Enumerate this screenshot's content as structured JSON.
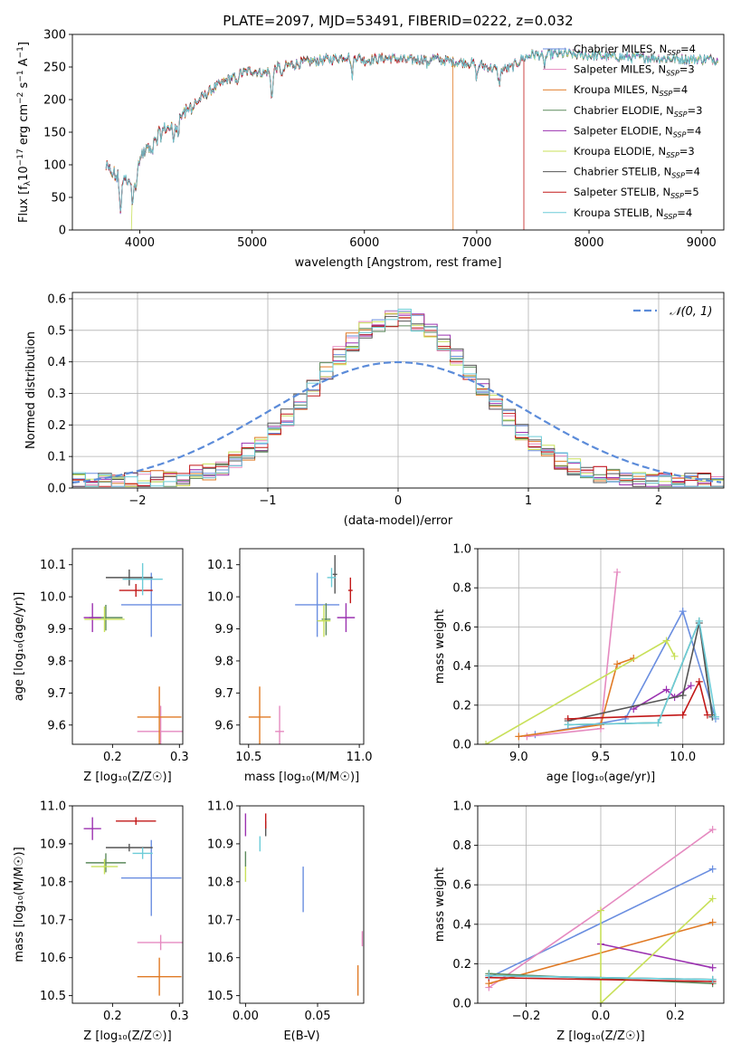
{
  "title": "PLATE=2097, MJD=53491, FIBERID=0222, z=0.032",
  "colors": {
    "Chabrier MILES": "#6a8ee0",
    "Salpeter MILES": "#e58ac0",
    "Kroupa MILES": "#e07a25",
    "Chabrier ELODIE": "#5c8a5c",
    "Salpeter ELODIE": "#9b32b0",
    "Kroupa ELODIE": "#c8e05a",
    "Chabrier STELIB": "#555555",
    "Salpeter STELIB": "#c21818",
    "Kroupa STELIB": "#6cccd8",
    "gaussian": "#5b8bd9"
  },
  "chart_data": [
    {
      "id": "spectrum",
      "type": "line",
      "xlabel": "wavelength [Angstrom, rest frame]",
      "ylabel": "Flux [f_λ 10^-17 erg cm^-2 s^-1 A^-1]",
      "xlim": [
        3400,
        9200
      ],
      "ylim": [
        0,
        300
      ],
      "xticks": [
        4000,
        5000,
        6000,
        7000,
        8000,
        9000
      ],
      "yticks": [
        0,
        50,
        100,
        150,
        200,
        250,
        300
      ],
      "legend_position": "upper-right",
      "legend": [
        {
          "name": "Chabrier MILES, N_SSP=4",
          "base": "Chabrier MILES, N",
          "sub": "SSP",
          "tail": "=4"
        },
        {
          "name": "Salpeter MILES, N_SSP=3",
          "base": "Salpeter MILES, N",
          "sub": "SSP",
          "tail": "=3"
        },
        {
          "name": "Kroupa MILES, N_SSP=4",
          "base": "Kroupa MILES, N",
          "sub": "SSP",
          "tail": "=4"
        },
        {
          "name": "Chabrier ELODIE, N_SSP=3",
          "base": "Chabrier ELODIE, N",
          "sub": "SSP",
          "tail": "=3"
        },
        {
          "name": "Salpeter ELODIE, N_SSP=4",
          "base": "Salpeter ELODIE, N",
          "sub": "SSP",
          "tail": "=4"
        },
        {
          "name": "Kroupa ELODIE, N_SSP=3",
          "base": "Kroupa ELODIE, N",
          "sub": "SSP",
          "tail": "=3"
        },
        {
          "name": "Chabrier STELIB, N_SSP=4",
          "base": "Chabrier STELIB, N",
          "sub": "SSP",
          "tail": "=4"
        },
        {
          "name": "Salpeter STELIB, N_SSP=5",
          "base": "Salpeter STELIB, N",
          "sub": "SSP",
          "tail": "=5"
        },
        {
          "name": "Kroupa STELIB, N_SSP=4",
          "base": "Kroupa STELIB, N",
          "sub": "SSP",
          "tail": "=4"
        }
      ],
      "continuum": [
        [
          3700,
          95
        ],
        [
          3800,
          80
        ],
        [
          3900,
          75
        ],
        [
          4000,
          110
        ],
        [
          4100,
          130
        ],
        [
          4200,
          150
        ],
        [
          4300,
          165
        ],
        [
          4400,
          180
        ],
        [
          4500,
          195
        ],
        [
          4600,
          210
        ],
        [
          4700,
          222
        ],
        [
          4800,
          232
        ],
        [
          4900,
          240
        ],
        [
          5000,
          245
        ],
        [
          5100,
          240
        ],
        [
          5200,
          248
        ],
        [
          5300,
          252
        ],
        [
          5400,
          255
        ],
        [
          5500,
          258
        ],
        [
          5600,
          260
        ],
        [
          5700,
          262
        ],
        [
          5800,
          265
        ],
        [
          5900,
          268
        ],
        [
          6000,
          260
        ],
        [
          6100,
          262
        ],
        [
          6200,
          264
        ],
        [
          6300,
          262
        ],
        [
          6400,
          260
        ],
        [
          6500,
          262
        ],
        [
          6600,
          264
        ],
        [
          6700,
          260
        ],
        [
          6800,
          258
        ],
        [
          6900,
          257
        ],
        [
          7000,
          255
        ],
        [
          7100,
          250
        ],
        [
          7200,
          245
        ],
        [
          7300,
          248
        ],
        [
          7400,
          262
        ],
        [
          7500,
          270
        ],
        [
          7600,
          268
        ],
        [
          7700,
          270
        ],
        [
          7800,
          270
        ],
        [
          7900,
          268
        ],
        [
          8000,
          268
        ],
        [
          8200,
          266
        ],
        [
          8400,
          265
        ],
        [
          8600,
          264
        ],
        [
          8800,
          262
        ],
        [
          9000,
          262
        ],
        [
          9100,
          262
        ]
      ],
      "absorption_features": [
        [
          3830,
          45
        ],
        [
          3935,
          40
        ],
        [
          3970,
          35
        ],
        [
          4101,
          15
        ],
        [
          4300,
          30
        ],
        [
          4340,
          15
        ],
        [
          4861,
          12
        ],
        [
          5175,
          40
        ],
        [
          5270,
          15
        ],
        [
          5890,
          30
        ],
        [
          6563,
          12
        ],
        [
          7000,
          20
        ],
        [
          7200,
          20
        ],
        [
          7600,
          15
        ]
      ],
      "model_cutoffs": [
        {
          "series": "Kroupa ELODIE",
          "start": 3925
        },
        {
          "series": "Kroupa MILES",
          "end": 6790
        },
        {
          "series": "Salpeter STELIB",
          "end": 7420
        }
      ]
    },
    {
      "id": "residual-histogram",
      "type": "histogram",
      "xlabel": "(data-model)/error",
      "ylabel": "Normed distribution",
      "xlim": [
        -2.5,
        2.5
      ],
      "ylim": [
        0,
        0.62
      ],
      "xticks": [
        -2,
        -1,
        0,
        1,
        2
      ],
      "yticks": [
        0.0,
        0.1,
        0.2,
        0.3,
        0.4,
        0.5,
        0.6
      ],
      "grid": true,
      "legend_position": "upper-right",
      "legend": [
        {
          "name": "N(0,1)",
          "style": "dashed"
        }
      ],
      "bin_width": 0.1
    },
    {
      "id": "age-vs-Z",
      "type": "scatter",
      "xlabel": "Z [log10(Z/Z☉)]",
      "ylabel": "age [log10(age/yr)]",
      "xlim": [
        0.14,
        0.305
      ],
      "ylim": [
        9.54,
        10.15
      ],
      "xticks": [
        0.2,
        0.3
      ],
      "yticks": [
        9.6,
        9.7,
        9.8,
        9.9,
        10.0,
        10.1
      ],
      "points": [
        {
          "series": "Chabrier MILES",
          "x": 0.258,
          "y": 9.975,
          "xerr": 0.045,
          "yerr": 0.1
        },
        {
          "series": "Salpeter MILES",
          "x": 0.272,
          "y": 9.58,
          "xerr": 0.035,
          "yerr": 0.08
        },
        {
          "series": "Kroupa MILES",
          "x": 0.27,
          "y": 9.625,
          "xerr": 0.033,
          "yerr": 0.095
        },
        {
          "series": "Chabrier ELODIE",
          "x": 0.19,
          "y": 9.935,
          "xerr": 0.025,
          "yerr": 0.04
        },
        {
          "series": "Salpeter ELODIE",
          "x": 0.17,
          "y": 9.935,
          "xerr": 0.013,
          "yerr": 0.045
        },
        {
          "series": "Kroupa ELODIE",
          "x": 0.188,
          "y": 9.93,
          "xerr": 0.03,
          "yerr": 0.04
        },
        {
          "series": "Chabrier STELIB",
          "x": 0.225,
          "y": 10.06,
          "xerr": 0.035,
          "yerr": 0.025
        },
        {
          "series": "Salpeter STELIB",
          "x": 0.235,
          "y": 10.02,
          "xerr": 0.025,
          "yerr": 0.02
        },
        {
          "series": "Kroupa STELIB",
          "x": 0.245,
          "y": 10.055,
          "xerr": 0.03,
          "yerr": 0.05
        }
      ]
    },
    {
      "id": "age-vs-mass",
      "type": "scatter",
      "xlabel": "mass [log10(M/M☉)]",
      "ylabel": "",
      "xlim": [
        10.46,
        11.02
      ],
      "ylim": [
        9.54,
        10.15
      ],
      "xticks": [
        10.5,
        11.0
      ],
      "yticks": [
        9.6,
        9.7,
        9.8,
        9.9,
        10.0,
        10.1
      ],
      "points": [
        {
          "series": "Chabrier MILES",
          "x": 10.81,
          "y": 9.975,
          "xerr": 0.1,
          "yerr": 0.1
        },
        {
          "series": "Salpeter MILES",
          "x": 10.64,
          "y": 9.58,
          "xerr": 0.02,
          "yerr": 0.08
        },
        {
          "series": "Kroupa MILES",
          "x": 10.55,
          "y": 9.625,
          "xerr": 0.05,
          "yerr": 0.095
        },
        {
          "series": "Chabrier ELODIE",
          "x": 10.85,
          "y": 9.93,
          "xerr": 0.02,
          "yerr": 0.05
        },
        {
          "series": "Salpeter ELODIE",
          "x": 10.94,
          "y": 9.935,
          "xerr": 0.04,
          "yerr": 0.045
        },
        {
          "series": "Kroupa ELODIE",
          "x": 10.84,
          "y": 9.925,
          "xerr": 0.03,
          "yerr": 0.05
        },
        {
          "series": "Chabrier STELIB",
          "x": 10.89,
          "y": 10.07,
          "xerr": 0.01,
          "yerr": 0.06
        },
        {
          "series": "Salpeter STELIB",
          "x": 10.96,
          "y": 10.02,
          "xerr": 0.01,
          "yerr": 0.04
        },
        {
          "series": "Kroupa STELIB",
          "x": 10.875,
          "y": 10.06,
          "xerr": 0.02,
          "yerr": 0.03
        }
      ]
    },
    {
      "id": "massweight-vs-age",
      "type": "line",
      "xlabel": "age [log10(age/yr)]",
      "ylabel": "mass weight",
      "xlim": [
        8.75,
        10.25
      ],
      "ylim": [
        0,
        1.0
      ],
      "xticks": [
        9.0,
        9.5,
        10.0
      ],
      "yticks": [
        0.0,
        0.2,
        0.4,
        0.6,
        0.8,
        1.0
      ],
      "grid": true,
      "series": [
        {
          "name": "Chabrier MILES",
          "points": [
            [
              9.1,
              0.05
            ],
            [
              9.65,
              0.13
            ],
            [
              10.0,
              0.68
            ],
            [
              10.2,
              0.13
            ]
          ]
        },
        {
          "name": "Salpeter MILES",
          "points": [
            [
              9.05,
              0.04
            ],
            [
              9.5,
              0.08
            ],
            [
              9.6,
              0.88
            ]
          ]
        },
        {
          "name": "Kroupa MILES",
          "points": [
            [
              9.0,
              0.04
            ],
            [
              9.5,
              0.1
            ],
            [
              9.6,
              0.41
            ],
            [
              9.7,
              0.44
            ]
          ]
        },
        {
          "name": "Chabrier ELODIE",
          "points": [
            [
              9.3,
              0.1
            ],
            [
              9.85,
              0.11
            ],
            [
              10.1,
              0.63
            ],
            [
              10.18,
              0.15
            ]
          ]
        },
        {
          "name": "Salpeter ELODIE",
          "points": [
            [
              9.7,
              0.18
            ],
            [
              9.9,
              0.28
            ],
            [
              9.95,
              0.24
            ],
            [
              10.05,
              0.3
            ]
          ]
        },
        {
          "name": "Kroupa ELODIE",
          "points": [
            [
              8.8,
              0.0
            ],
            [
              9.9,
              0.53
            ],
            [
              9.95,
              0.45
            ]
          ]
        },
        {
          "name": "Chabrier STELIB",
          "points": [
            [
              9.3,
              0.12
            ],
            [
              10.0,
              0.25
            ],
            [
              10.1,
              0.62
            ],
            [
              10.18,
              0.14
            ]
          ]
        },
        {
          "name": "Salpeter STELIB",
          "points": [
            [
              9.3,
              0.13
            ],
            [
              10.0,
              0.15
            ],
            [
              10.1,
              0.32
            ],
            [
              10.15,
              0.15
            ]
          ]
        },
        {
          "name": "Kroupa STELIB",
          "points": [
            [
              9.3,
              0.1
            ],
            [
              9.85,
              0.11
            ],
            [
              10.1,
              0.63
            ],
            [
              10.2,
              0.14
            ]
          ]
        }
      ]
    },
    {
      "id": "mass-vs-Z",
      "type": "scatter",
      "xlabel": "Z [log10(Z/Z☉)]",
      "ylabel": "mass [log10(M/M☉)]",
      "xlim": [
        0.14,
        0.305
      ],
      "ylim": [
        10.48,
        11.0
      ],
      "xticks": [
        0.2,
        0.3
      ],
      "yticks": [
        10.5,
        10.6,
        10.7,
        10.8,
        10.9,
        11.0
      ],
      "points": [
        {
          "series": "Chabrier MILES",
          "x": 0.258,
          "y": 10.81,
          "xerr": 0.045,
          "yerr": 0.1
        },
        {
          "series": "Salpeter MILES",
          "x": 0.272,
          "y": 10.64,
          "xerr": 0.035,
          "yerr": 0.02
        },
        {
          "series": "Kroupa MILES",
          "x": 0.27,
          "y": 10.55,
          "xerr": 0.033,
          "yerr": 0.05
        },
        {
          "series": "Chabrier ELODIE",
          "x": 0.19,
          "y": 10.85,
          "xerr": 0.03,
          "yerr": 0.025
        },
        {
          "series": "Salpeter ELODIE",
          "x": 0.17,
          "y": 10.94,
          "xerr": 0.013,
          "yerr": 0.03
        },
        {
          "series": "Kroupa ELODIE",
          "x": 0.188,
          "y": 10.84,
          "xerr": 0.02,
          "yerr": 0.02
        },
        {
          "series": "Chabrier STELIB",
          "x": 0.225,
          "y": 10.89,
          "xerr": 0.035,
          "yerr": 0.01
        },
        {
          "series": "Salpeter STELIB",
          "x": 0.235,
          "y": 10.96,
          "xerr": 0.03,
          "yerr": 0.01
        },
        {
          "series": "Kroupa STELIB",
          "x": 0.245,
          "y": 10.875,
          "xerr": 0.015,
          "yerr": 0.015
        }
      ]
    },
    {
      "id": "mass-vs-EBV",
      "type": "scatter",
      "xlabel": "E(B-V)",
      "ylabel": "",
      "xlim": [
        -0.004,
        0.082
      ],
      "ylim": [
        10.48,
        11.0
      ],
      "xticks": [
        0.0,
        0.05
      ],
      "yticks": [
        10.5,
        10.6,
        10.7,
        10.8,
        10.9,
        11.0
      ],
      "points": [
        {
          "series": "Chabrier MILES",
          "x": 0.04,
          "y": 10.78,
          "xerr": 0,
          "yerr": 0.06
        },
        {
          "series": "Salpeter MILES",
          "x": 0.081,
          "y": 10.65,
          "xerr": 0,
          "yerr": 0.02
        },
        {
          "series": "Kroupa MILES",
          "x": 0.078,
          "y": 10.54,
          "xerr": 0,
          "yerr": 0.04
        },
        {
          "series": "Chabrier ELODIE",
          "x": 0.0,
          "y": 10.86,
          "xerr": 0,
          "yerr": 0.02
        },
        {
          "series": "Salpeter ELODIE",
          "x": 0.0,
          "y": 10.95,
          "xerr": 0,
          "yerr": 0.03
        },
        {
          "series": "Kroupa ELODIE",
          "x": 0.0,
          "y": 10.82,
          "xerr": 0,
          "yerr": 0.02
        },
        {
          "series": "Chabrier STELIB",
          "x": 0.014,
          "y": 10.94,
          "xerr": 0,
          "yerr": 0.02
        },
        {
          "series": "Salpeter STELIB",
          "x": 0.014,
          "y": 10.96,
          "xerr": 0,
          "yerr": 0.02
        },
        {
          "series": "Kroupa STELIB",
          "x": 0.01,
          "y": 10.9,
          "xerr": 0,
          "yerr": 0.02
        }
      ]
    },
    {
      "id": "massweight-vs-Z",
      "type": "line",
      "xlabel": "Z [log10(Z/Z☉)]",
      "ylabel": "mass weight",
      "xlim": [
        -0.33,
        0.33
      ],
      "ylim": [
        0,
        1.0
      ],
      "xticks": [
        -0.2,
        0.0,
        0.2
      ],
      "yticks": [
        0.0,
        0.2,
        0.4,
        0.6,
        0.8,
        1.0
      ],
      "grid": true,
      "series": [
        {
          "name": "Chabrier MILES",
          "points": [
            [
              -0.3,
              0.13
            ],
            [
              0.3,
              0.68
            ]
          ]
        },
        {
          "name": "Salpeter MILES",
          "points": [
            [
              -0.3,
              0.08
            ],
            [
              0.0,
              0.47
            ],
            [
              0.3,
              0.88
            ]
          ]
        },
        {
          "name": "Kroupa MILES",
          "points": [
            [
              -0.3,
              0.1
            ],
            [
              0.3,
              0.41
            ]
          ]
        },
        {
          "name": "Chabrier ELODIE",
          "points": [
            [
              -0.3,
              0.15
            ],
            [
              0.3,
              0.1
            ]
          ]
        },
        {
          "name": "Salpeter ELODIE",
          "points": [
            [
              0.0,
              0.3
            ],
            [
              0.3,
              0.18
            ]
          ]
        },
        {
          "name": "Kroupa ELODIE",
          "points": [
            [
              0.0,
              0.47
            ],
            [
              0.0,
              0.0
            ],
            [
              0.3,
              0.53
            ]
          ]
        },
        {
          "name": "Chabrier STELIB",
          "points": [
            [
              -0.3,
              0.14
            ],
            [
              0.3,
              0.12
            ]
          ]
        },
        {
          "name": "Salpeter STELIB",
          "points": [
            [
              -0.3,
              0.13
            ],
            [
              0.3,
              0.11
            ]
          ]
        },
        {
          "name": "Kroupa STELIB",
          "points": [
            [
              -0.3,
              0.14
            ],
            [
              0.3,
              0.12
            ]
          ]
        }
      ]
    }
  ]
}
